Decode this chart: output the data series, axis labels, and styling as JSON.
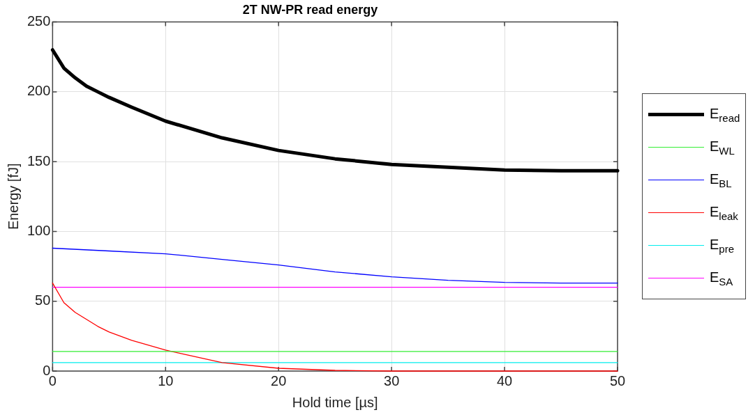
{
  "chart_data": {
    "type": "line",
    "title": "2T NW-PR read energy",
    "xlabel": "Hold time [µs]",
    "ylabel": "Energy [fJ]",
    "xlim": [
      0,
      50
    ],
    "xticks": [
      0,
      10,
      20,
      30,
      40,
      50
    ],
    "ylim": [
      0,
      250
    ],
    "yticks": [
      0,
      50,
      100,
      150,
      200,
      250
    ],
    "grid": true,
    "legend": "right",
    "marker": "none",
    "line_style": "solid",
    "series": [
      {
        "name": "E$_{read}$",
        "color": "#000000",
        "x": [
          0,
          1,
          2,
          3,
          4,
          5,
          7,
          10,
          15,
          20,
          25,
          30,
          35,
          40,
          45,
          50
        ],
        "values": [
          230,
          217,
          210,
          204,
          200,
          196,
          189,
          179,
          167,
          158,
          152,
          148,
          146,
          144,
          143.5,
          143.5
        ]
      },
      {
        "name": "E$_{WL}$",
        "color": "#33ee33",
        "x": [
          0,
          50
        ],
        "values": [
          14,
          14
        ]
      },
      {
        "name": "E$_{BL}$",
        "color": "#0000ff",
        "x": [
          0,
          5,
          10,
          15,
          20,
          25,
          30,
          35,
          40,
          45,
          50
        ],
        "values": [
          88,
          86,
          84,
          80,
          76,
          71,
          67.5,
          65,
          63.5,
          63,
          63
        ]
      },
      {
        "name": "E$_{leak}$",
        "color": "#ff0000",
        "x": [
          0,
          1,
          2,
          3,
          4,
          5,
          7,
          10,
          15,
          20,
          25,
          30,
          40,
          50
        ],
        "values": [
          63,
          49,
          42,
          37,
          32,
          28,
          22,
          15,
          6,
          2,
          0.5,
          0,
          0,
          0
        ]
      },
      {
        "name": "E$_{pre}$",
        "color": "#00eeee",
        "x": [
          0,
          50
        ],
        "values": [
          6,
          6
        ]
      },
      {
        "name": "E$_{SA}$",
        "color": "#ff00ff",
        "x": [
          0,
          50
        ],
        "values": [
          60,
          60
        ]
      }
    ]
  }
}
